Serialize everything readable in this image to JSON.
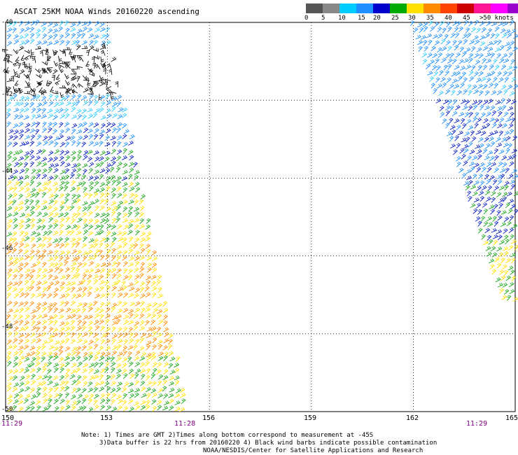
{
  "title": "ASCAT 25KM NOAA Winds 20160220 ascending",
  "legend": {
    "colors": [
      "#555555",
      "#888888",
      "#00ccff",
      "#1e90ff",
      "#0000cd",
      "#00aa00",
      "#ffe000",
      "#ff8c00",
      "#ff4500",
      "#cc0000",
      "#ff1493",
      "#ff00ff",
      "#9900cc",
      "#330066"
    ],
    "labels": [
      "0",
      "5",
      "10",
      "15",
      "20",
      "25",
      "30",
      "35",
      "40",
      "45",
      ">50 knots"
    ]
  },
  "axes": {
    "lon_ticks": [
      "150",
      "153",
      "156",
      "159",
      "162",
      "165"
    ],
    "lat_ticks": [
      "-40",
      "-42",
      "-44",
      "-46",
      "-48",
      "-50"
    ]
  },
  "times": [
    "11:29",
    "11:28",
    "11:29"
  ],
  "notes": [
    "Note: 1) Times are GMT 2)Times along bottom correspond to measurement at -45S",
    "3)Data buffer is 22 hrs from 20160220 4) Black wind barbs indicate possible contamination",
    "NOAA/NESDIS/Center for Satellite Applications and Research"
  ],
  "map_data": {
    "lon_range": [
      150,
      165
    ],
    "lat_range": [
      -40,
      -50
    ],
    "swaths": [
      {
        "name": "west-swath",
        "time": "11:29",
        "wind_bands": [
          {
            "lat_from": -40.0,
            "lat_to": -40.6,
            "speed_knots": 12
          },
          {
            "lat_from": -40.6,
            "lat_to": -41.9,
            "speed_knots": 5,
            "contaminated": true
          },
          {
            "lat_from": -41.9,
            "lat_to": -42.6,
            "speed_knots": 10
          },
          {
            "lat_from": -42.6,
            "lat_to": -43.3,
            "speed_knots": 15
          },
          {
            "lat_from": -43.3,
            "lat_to": -44.1,
            "speed_knots": 20
          },
          {
            "lat_from": -44.1,
            "lat_to": -45.7,
            "speed_knots": 25
          },
          {
            "lat_from": -45.7,
            "lat_to": -47.2,
            "speed_knots": 30
          },
          {
            "lat_from": -47.2,
            "lat_to": -48.6,
            "speed_knots": 30
          },
          {
            "lat_from": -48.6,
            "lat_to": -50.0,
            "speed_knots": 25
          }
        ]
      },
      {
        "name": "east-swath",
        "time": "11:29",
        "wind_bands": [
          {
            "lat_from": -40.0,
            "lat_to": -42.0,
            "speed_knots": 12
          },
          {
            "lat_from": -42.0,
            "lat_to": -44.2,
            "speed_knots": 15
          },
          {
            "lat_from": -44.2,
            "lat_to": -45.6,
            "speed_knots": 20
          },
          {
            "lat_from": -45.6,
            "lat_to": -47.2,
            "speed_knots": 25
          }
        ]
      }
    ]
  }
}
